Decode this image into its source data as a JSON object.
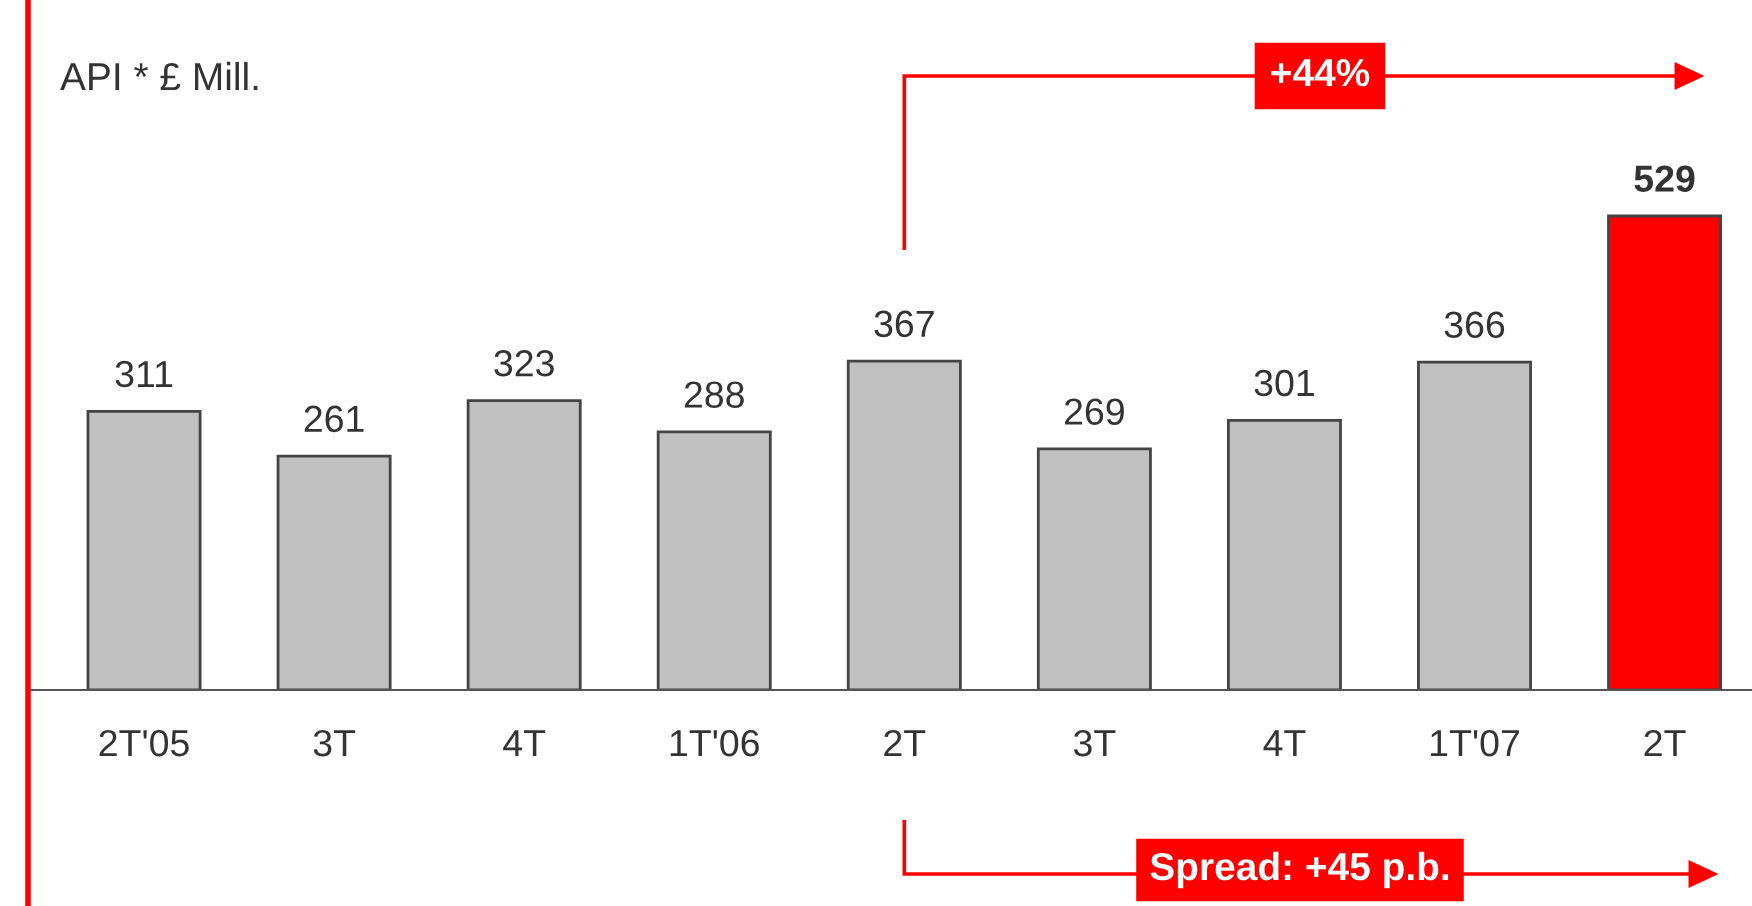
{
  "chart_data": {
    "type": "bar",
    "title": "API * £ Mill.",
    "categories": [
      "2T'05",
      "3T",
      "4T",
      "1T'06",
      "2T",
      "3T",
      "4T",
      "1T'07",
      "2T"
    ],
    "values": [
      311,
      261,
      323,
      288,
      367,
      269,
      301,
      366,
      529
    ],
    "colors": [
      "#c0c0c0",
      "#c0c0c0",
      "#c0c0c0",
      "#c0c0c0",
      "#c0c0c0",
      "#c0c0c0",
      "#c0c0c0",
      "#c0c0c0",
      "#ff0000"
    ],
    "data_labels": true,
    "annotations": [
      "+44%",
      "Spread: +45 p.b."
    ]
  }
}
